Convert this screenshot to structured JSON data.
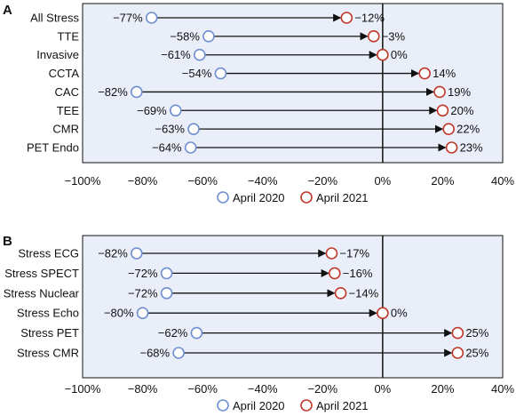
{
  "chart_data": [
    {
      "type": "dumbbell",
      "panel": "A",
      "categories": [
        "All Stress",
        "TTE",
        "Invasive",
        "CCTA",
        "CAC",
        "TEE",
        "CMR",
        "PET Endo"
      ],
      "series": [
        {
          "name": "April 2020",
          "values": [
            -77,
            -58,
            -61,
            -54,
            -82,
            -69,
            -63,
            -64
          ],
          "labels": [
            "−77%",
            "−58%",
            "−61%",
            "−54%",
            "−82%",
            "−69%",
            "−63%",
            "−64%"
          ],
          "color": "#6f8fcf"
        },
        {
          "name": "April 2021",
          "values": [
            -12,
            -3,
            0,
            14,
            19,
            20,
            22,
            23
          ],
          "labels": [
            "−12%",
            "−3%",
            "0%",
            "14%",
            "19%",
            "20%",
            "22%",
            "23%"
          ],
          "color": "#c0392b"
        }
      ],
      "xlim": [
        -100,
        40
      ],
      "xticks": [
        -100,
        -80,
        -60,
        -40,
        -20,
        0,
        20,
        40
      ],
      "xtick_labels": [
        "−100%",
        "−80%",
        "−60%",
        "−40%",
        "−20%",
        "0%",
        "20%",
        "40%"
      ],
      "legend": [
        "April 2020",
        "April 2021"
      ],
      "legend_position": "bottom",
      "background": "#e9eef8"
    },
    {
      "type": "dumbbell",
      "panel": "B",
      "categories": [
        "Stress ECG",
        "Stress SPECT",
        "Stress Nuclear",
        "Stress Echo",
        "Stress PET",
        "Stress CMR"
      ],
      "series": [
        {
          "name": "April 2020",
          "values": [
            -82,
            -72,
            -72,
            -80,
            -62,
            -68
          ],
          "labels": [
            "−82%",
            "−72%",
            "−72%",
            "−80%",
            "−62%",
            "−68%"
          ],
          "color": "#6f8fcf"
        },
        {
          "name": "April 2021",
          "values": [
            -17,
            -16,
            -14,
            0,
            25,
            25
          ],
          "labels": [
            "−17%",
            "−16%",
            "−14%",
            "0%",
            "25%",
            "25%"
          ],
          "color": "#c0392b"
        }
      ],
      "xlim": [
        -100,
        40
      ],
      "xticks": [
        -100,
        -80,
        -60,
        -40,
        -20,
        0,
        20,
        40
      ],
      "xtick_labels": [
        "−100%",
        "−80%",
        "−60%",
        "−40%",
        "−20%",
        "0%",
        "20%",
        "40%"
      ],
      "legend": [
        "April 2020",
        "April 2021"
      ],
      "legend_position": "bottom",
      "background": "#e9eef8"
    }
  ]
}
